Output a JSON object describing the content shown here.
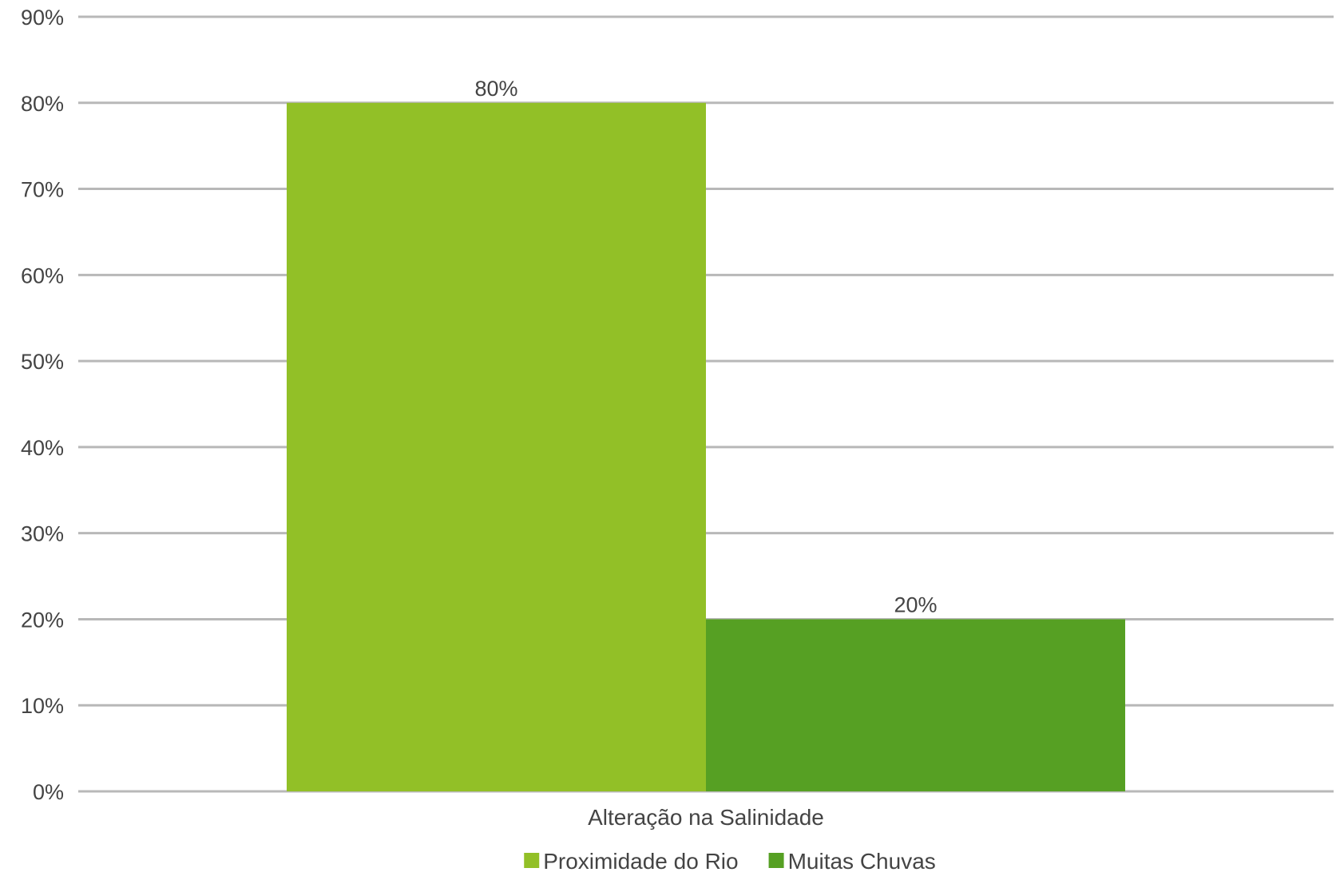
{
  "chart_data": {
    "type": "bar",
    "title": "",
    "xlabel": "",
    "ylabel": "",
    "categories": [
      "Alteração na Salinidade"
    ],
    "series": [
      {
        "name": "Proximidade do Rio",
        "values": [
          80
        ],
        "color": "#92c027",
        "label": "80%"
      },
      {
        "name": "Muitas Chuvas",
        "values": [
          20
        ],
        "color": "#56a023",
        "label": "20%"
      }
    ],
    "ylim": [
      0,
      90
    ],
    "y_ticks": [
      0,
      10,
      20,
      30,
      40,
      50,
      60,
      70,
      80,
      90
    ],
    "y_tick_labels": [
      "0%",
      "10%",
      "20%",
      "30%",
      "40%",
      "50%",
      "60%",
      "70%",
      "80%",
      "90%"
    ],
    "y_unit": "%",
    "grid": true,
    "legend_position": "bottom"
  }
}
